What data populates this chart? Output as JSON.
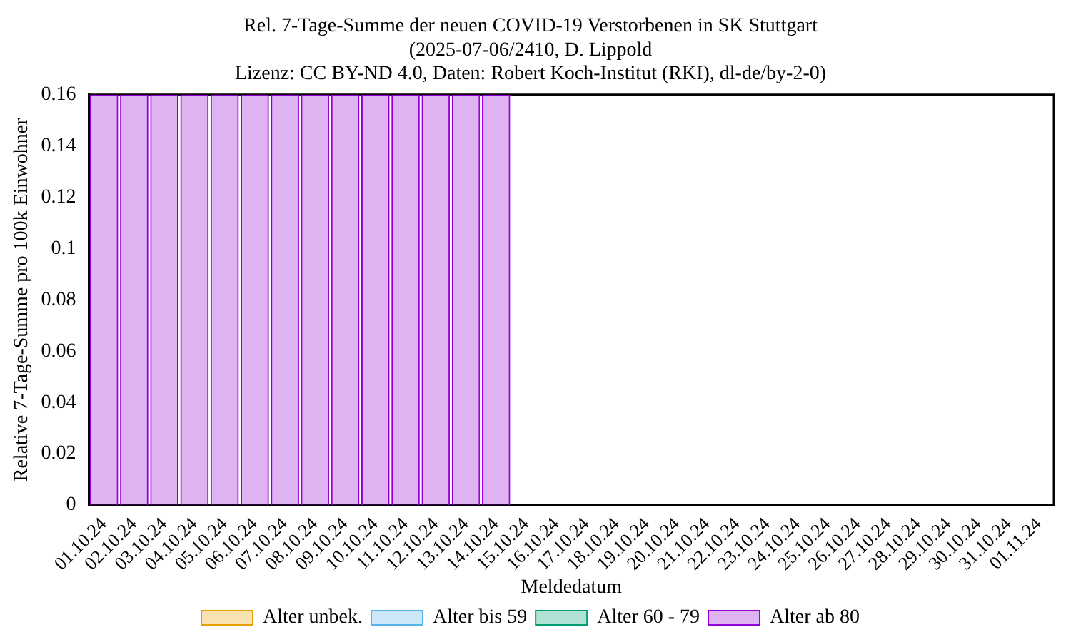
{
  "chart_data": {
    "type": "bar",
    "title": [
      "Rel. 7-Tage-Summe der neuen COVID-19 Verstorbenen in SK Stuttgart",
      "(2025-07-06/2410, D. Lippold",
      "Lizenz: CC BY-ND 4.0, Daten: Robert Koch-Institut (RKI), dl-de/by-2-0)"
    ],
    "xlabel": "Meldedatum",
    "ylabel": "Relative 7-Tage-Summe pro 100k Einwohner",
    "categories": [
      "01.10.24",
      "02.10.24",
      "03.10.24",
      "04.10.24",
      "05.10.24",
      "06.10.24",
      "07.10.24",
      "08.10.24",
      "09.10.24",
      "10.10.24",
      "11.10.24",
      "12.10.24",
      "13.10.24",
      "14.10.24",
      "15.10.24",
      "16.10.24",
      "17.10.24",
      "18.10.24",
      "19.10.24",
      "20.10.24",
      "21.10.24",
      "22.10.24",
      "23.10.24",
      "24.10.24",
      "25.10.24",
      "26.10.24",
      "27.10.24",
      "28.10.24",
      "29.10.24",
      "30.10.24",
      "31.10.24",
      "01.11.24"
    ],
    "stacked": true,
    "ylim": [
      0,
      0.16
    ],
    "yticks": [
      0,
      0.02,
      0.04,
      0.06,
      0.08,
      0.1,
      0.12,
      0.14,
      0.16
    ],
    "grid": false,
    "legend": "bottom",
    "series": [
      {
        "name": "Alter unbek.",
        "color": "#e69f00",
        "values": [
          0,
          0,
          0,
          0,
          0,
          0,
          0,
          0,
          0,
          0,
          0,
          0,
          0,
          0,
          null,
          null,
          null,
          null,
          null,
          null,
          null,
          null,
          null,
          null,
          null,
          null,
          null,
          null,
          null,
          null,
          null,
          null
        ]
      },
      {
        "name": "Alter bis 59",
        "color": "#56b4e9",
        "values": [
          0,
          0,
          0,
          0,
          0,
          0,
          0,
          0,
          0,
          0,
          0,
          0,
          0,
          0,
          null,
          null,
          null,
          null,
          null,
          null,
          null,
          null,
          null,
          null,
          null,
          null,
          null,
          null,
          null,
          null,
          null,
          null
        ]
      },
      {
        "name": "Alter 60 - 79",
        "color": "#009e73",
        "values": [
          0,
          0,
          0,
          0,
          0,
          0,
          0,
          0,
          0,
          0,
          0,
          0,
          0,
          0,
          null,
          null,
          null,
          null,
          null,
          null,
          null,
          null,
          null,
          null,
          null,
          null,
          null,
          null,
          null,
          null,
          null,
          null
        ]
      },
      {
        "name": "Alter ab 80",
        "color": "#9400d3",
        "values": [
          0.16,
          0.16,
          0.16,
          0.16,
          0.16,
          0.16,
          0.16,
          0.16,
          0.16,
          0.16,
          0.16,
          0.16,
          0.16,
          0.16,
          null,
          null,
          null,
          null,
          null,
          null,
          null,
          null,
          null,
          null,
          null,
          null,
          null,
          null,
          null,
          null,
          null,
          null
        ]
      }
    ]
  }
}
